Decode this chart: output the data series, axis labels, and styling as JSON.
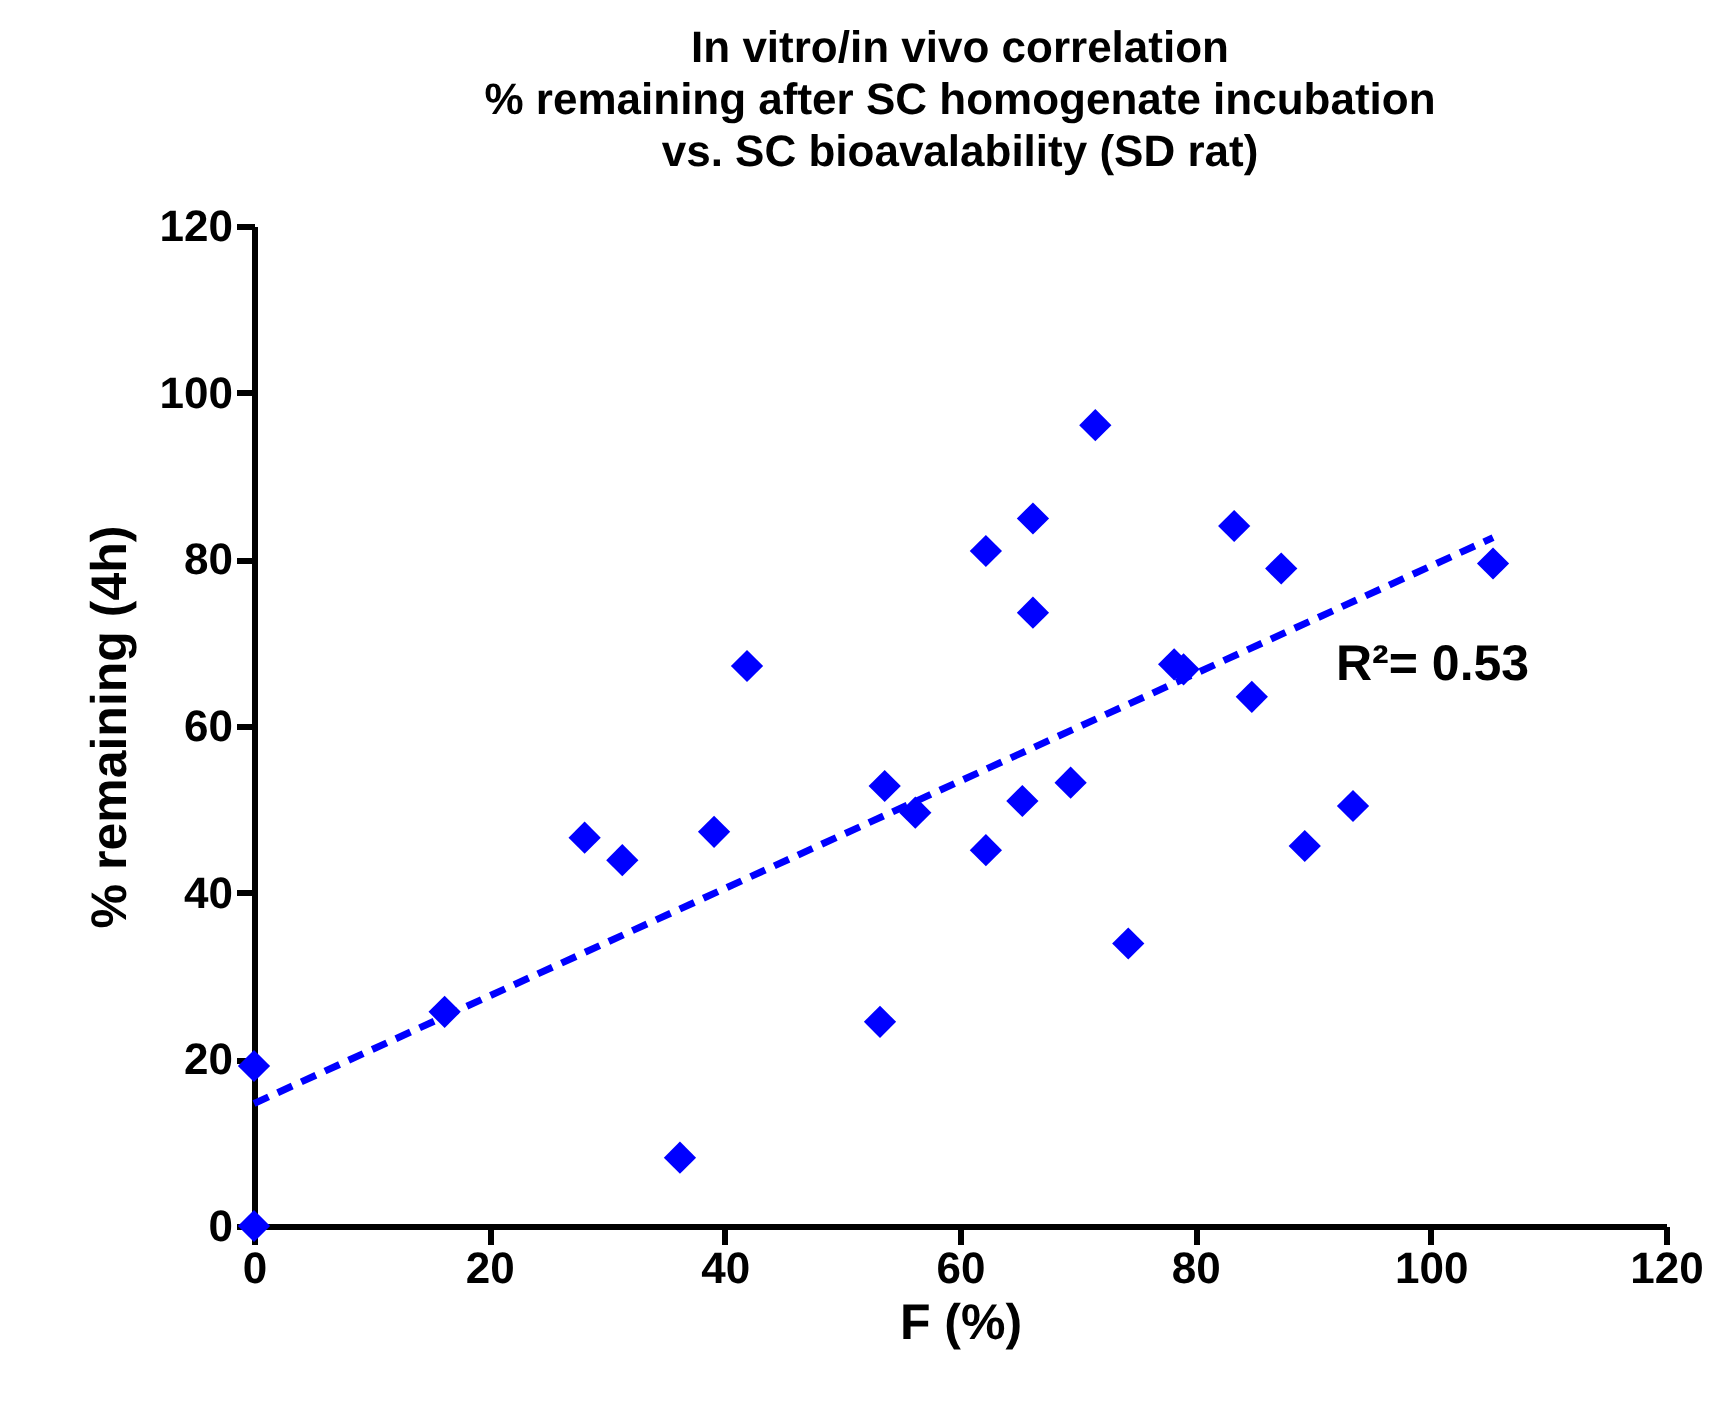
{
  "chart_data": {
    "type": "scatter",
    "title": [
      "In vitro/in vivo correlation",
      "% remaining after SC homogenate incubation",
      "vs. SC bioavalability  (SD rat)"
    ],
    "xlabel": "F (%)",
    "ylabel": "% remaining (4h)",
    "xlim": [
      0,
      120
    ],
    "xticks": [
      0,
      20,
      40,
      60,
      80,
      100,
      120
    ],
    "ylim": [
      0,
      120
    ],
    "yticks": [
      0,
      20,
      40,
      60,
      80,
      100,
      120
    ],
    "series": [
      {
        "color": "#0000ff",
        "marker": "diamond",
        "x": [
          0,
          0,
          16.2,
          28.1,
          31.3,
          36.2,
          39.1,
          41.9,
          53.2,
          53.6,
          56.2,
          62.2,
          62.2,
          65.3,
          66.2,
          66.2,
          69.4,
          71.5,
          74.3,
          78.2,
          79,
          83.3,
          84.8,
          87.3,
          89.3,
          93.4,
          105.3
        ],
        "values": [
          0,
          19.2,
          25.7,
          46.6,
          43.9,
          8.2,
          47.3,
          67.2,
          24.5,
          52.8,
          49.6,
          81.0,
          45.1,
          51.0,
          84.9,
          73.6,
          53.2,
          96.1,
          33.9,
          67.4,
          66.8,
          84.0,
          63.5,
          78.9,
          45.6,
          50.4,
          79.5
        ]
      },
      {
        "type": "line",
        "color": "#0000ff",
        "line_style": "dashed",
        "marker": "none",
        "x": [
          0,
          105.3
        ],
        "values": [
          14.7,
          82.6
        ]
      }
    ],
    "annotations": [
      "R²= 0.53"
    ]
  }
}
